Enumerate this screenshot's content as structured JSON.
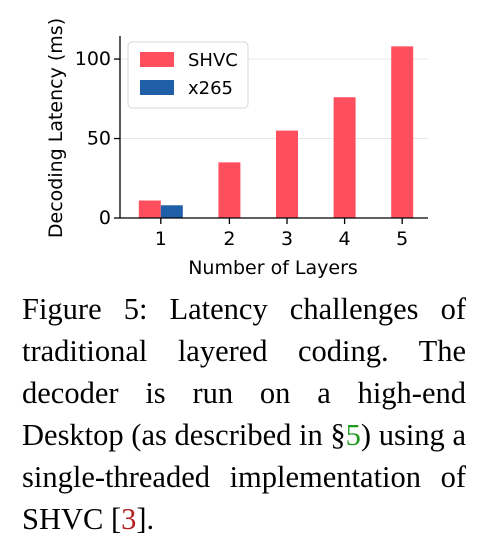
{
  "chart_data": {
    "type": "bar",
    "xlabel": "Number of Layers",
    "ylabel": "Decoding Latency (ms)",
    "categories": [
      "1",
      "2",
      "3",
      "4",
      "5"
    ],
    "yticks": [
      0,
      50,
      100
    ],
    "ylim": [
      0,
      112
    ],
    "grid": "horizontal",
    "legend_position": "top-left",
    "series": [
      {
        "name": "SHVC",
        "color": "#ff4f5e",
        "values": [
          11,
          35,
          55,
          76,
          108
        ]
      },
      {
        "name": "x265",
        "color": "#1f5fa8",
        "values": [
          8,
          null,
          null,
          null,
          null
        ]
      }
    ]
  },
  "caption": {
    "part1": "Figure 5: Latency challenges of traditional layered coding. The decoder is run on a high-end Desktop (as described in §",
    "ref_section": "5",
    "part2": ") using a single-threaded implementation of SHVC [",
    "ref_citation": "3",
    "part3": "]."
  }
}
